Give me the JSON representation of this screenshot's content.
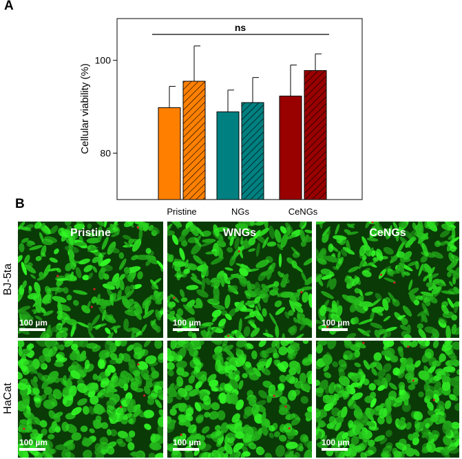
{
  "panels": {
    "a": "A",
    "b": "B"
  },
  "chart_data": {
    "type": "bar",
    "ylabel": "Cellular viability (%)",
    "categories": [
      "Pristine",
      "NGs",
      "CeNGs"
    ],
    "yticks": [
      80,
      100
    ],
    "ylim": [
      70,
      109
    ],
    "significance": "ns",
    "colors": [
      "#ff8000",
      "#008080",
      "#990000"
    ],
    "series": [
      {
        "pattern": "solid",
        "values": [
          89.8,
          88.9,
          92.3
        ],
        "errors": [
          4.6,
          4.7,
          6.7
        ]
      },
      {
        "pattern": "hatched",
        "values": [
          95.5,
          90.9,
          97.8
        ],
        "errors": [
          7.6,
          5.4,
          3.6
        ]
      }
    ]
  },
  "micrographs": {
    "columns": [
      "Pristine",
      "WNGs",
      "CeNGs"
    ],
    "rows": [
      "BJ-5ta",
      "HaCat"
    ],
    "scale_bar": "100 µm",
    "colors": {
      "stain": "#22dd22",
      "background": "#0a3a06",
      "dead": "#cc2222"
    }
  }
}
